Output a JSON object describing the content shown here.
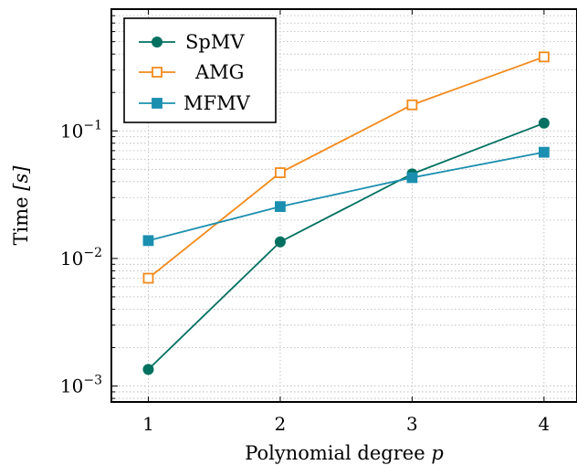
{
  "chart_data": {
    "type": "line",
    "title": "",
    "xlabel_text": "Polynomial degree",
    "xlabel_var": "p",
    "ylabel_text": "Time",
    "ylabel_unit": "[s]",
    "x": [
      1,
      2,
      3,
      4
    ],
    "x_tick_labels": [
      "1",
      "2",
      "3",
      "4"
    ],
    "xlim": [
      0.72,
      4.25
    ],
    "y_scale": "log",
    "ylim": [
      0.00075,
      0.9
    ],
    "y_ticks": [
      {
        "value": 0.001,
        "base": "10",
        "exp": "−3"
      },
      {
        "value": 0.01,
        "base": "10",
        "exp": "−2"
      },
      {
        "value": 0.1,
        "base": "10",
        "exp": "−1"
      }
    ],
    "grid": true,
    "legend_position": "top-left",
    "series": [
      {
        "name": "SpMV",
        "values": [
          0.00135,
          0.0135,
          0.046,
          0.115
        ],
        "color": "#007060",
        "marker": "filled-circle"
      },
      {
        "name": "AMG",
        "values": [
          0.007,
          0.047,
          0.16,
          0.38
        ],
        "color": "#f28a1b",
        "marker": "open-square"
      },
      {
        "name": "MFMV",
        "values": [
          0.0138,
          0.0255,
          0.043,
          0.068
        ],
        "color": "#1b8faf",
        "marker": "filled-square"
      }
    ]
  }
}
